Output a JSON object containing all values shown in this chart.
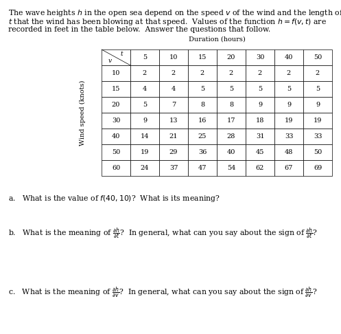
{
  "bg_color": "#ffffff",
  "text_color": "#000000",
  "font_size_title": 7.8,
  "font_size_table": 7.0,
  "font_size_qa": 7.8,
  "duration_label": "Duration (hours)",
  "wind_label": "Wind speed (knots)",
  "col_headers": [
    "5",
    "10",
    "15",
    "20",
    "30",
    "40",
    "50"
  ],
  "row_headers": [
    "10",
    "15",
    "20",
    "30",
    "40",
    "50",
    "60"
  ],
  "table_data": [
    [
      2,
      2,
      2,
      2,
      2,
      2,
      2
    ],
    [
      4,
      4,
      5,
      5,
      5,
      5,
      5
    ],
    [
      5,
      7,
      8,
      8,
      9,
      9,
      9
    ],
    [
      9,
      13,
      16,
      17,
      18,
      19,
      19
    ],
    [
      14,
      21,
      25,
      28,
      31,
      33,
      33
    ],
    [
      19,
      29,
      36,
      40,
      45,
      48,
      50
    ],
    [
      24,
      37,
      47,
      54,
      62,
      67,
      69
    ]
  ]
}
